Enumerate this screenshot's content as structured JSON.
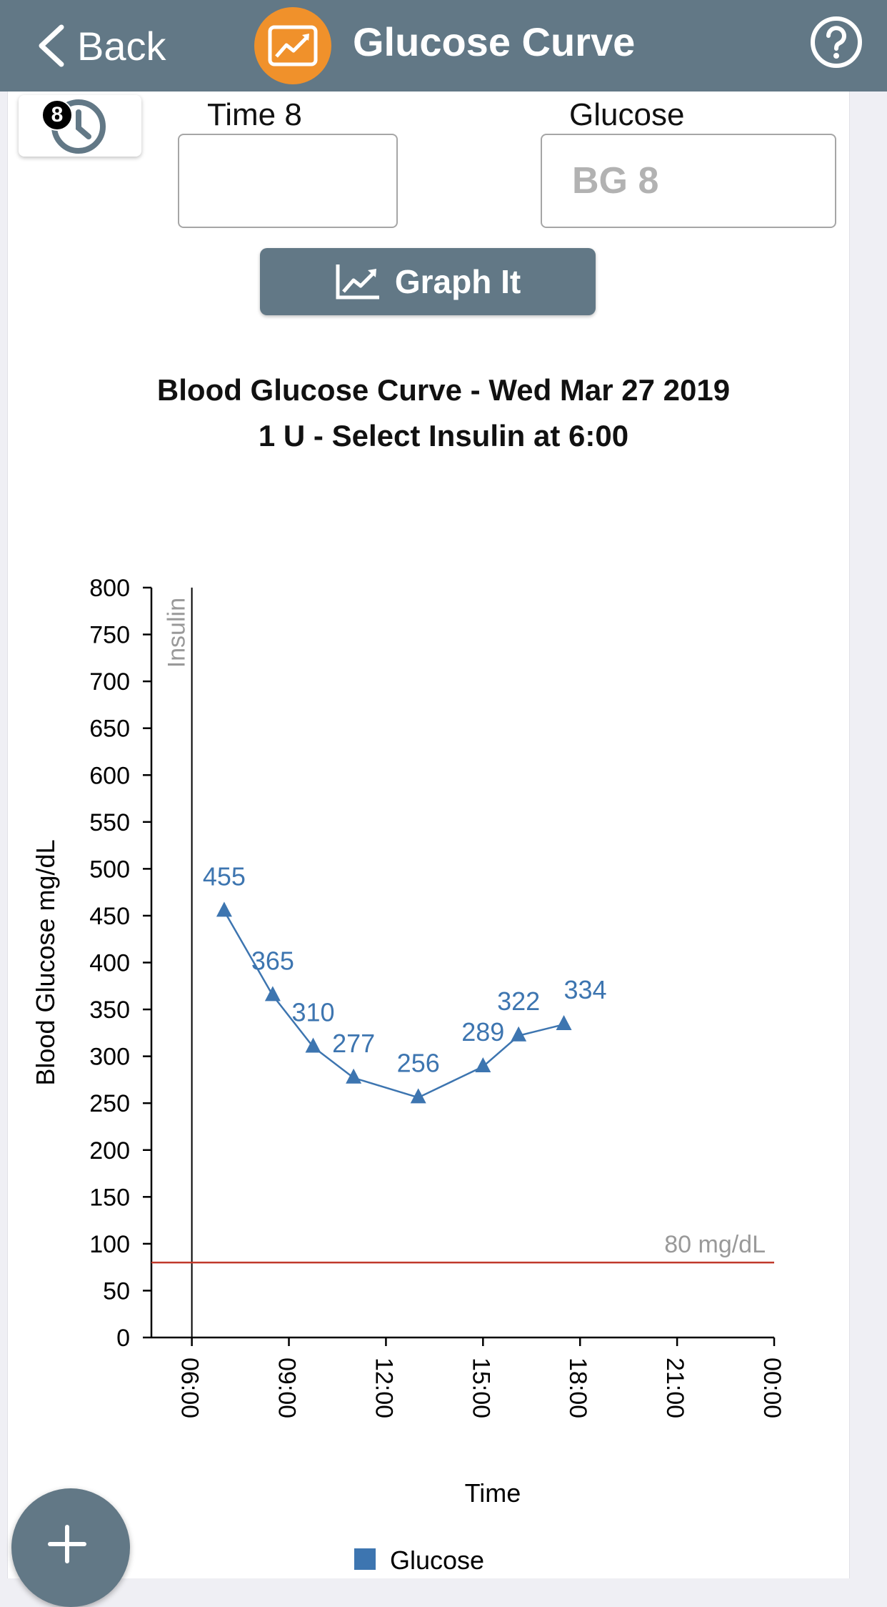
{
  "navbar": {
    "back_label": "Back",
    "title": "Glucose Curve"
  },
  "entry": {
    "time_badge": "8",
    "time_label": "Time 8",
    "time_value": "",
    "glucose_label": "Glucose",
    "glucose_placeholder": "BG 8",
    "graph_button_label": "Graph It"
  },
  "colors": {
    "header": "#627886",
    "accent": "#f0912b",
    "series": "#3d75b0",
    "threshold": "#c0392b"
  },
  "chart_data": {
    "type": "line",
    "title": "Blood Glucose Curve - Wed Mar 27 2019",
    "subtitle": "1 U - Select Insulin at 6:00",
    "xlabel": "Time",
    "ylabel": "Blood Glucose mg/dL",
    "ylim": [
      0,
      800
    ],
    "yticks": [
      0,
      50,
      100,
      150,
      200,
      250,
      300,
      350,
      400,
      450,
      500,
      550,
      600,
      650,
      700,
      750,
      800
    ],
    "xlim_hours": [
      4.75,
      24
    ],
    "xticks": [
      "06:00",
      "09:00",
      "12:00",
      "15:00",
      "18:00",
      "21:00",
      "00:00"
    ],
    "xtick_hours": [
      6,
      9,
      12,
      15,
      18,
      21,
      24
    ],
    "grid": false,
    "legend": "bottom",
    "series": [
      {
        "name": "Glucose",
        "marker": "triangle",
        "x": [
          "07:00",
          "08:30",
          "09:45",
          "11:00",
          "13:00",
          "15:00",
          "16:05",
          "17:30"
        ],
        "x_hours": [
          7.0,
          8.5,
          9.75,
          11.0,
          13.0,
          15.0,
          16.1,
          17.5
        ],
        "values": [
          455,
          365,
          310,
          277,
          256,
          289,
          322,
          334
        ]
      }
    ],
    "annotations": [
      {
        "type": "vertical-line",
        "x": "06:00",
        "x_hours": 6,
        "label": "Insulin"
      },
      {
        "type": "horizontal-line",
        "y": 80,
        "label": "80 mg/dL"
      }
    ]
  }
}
